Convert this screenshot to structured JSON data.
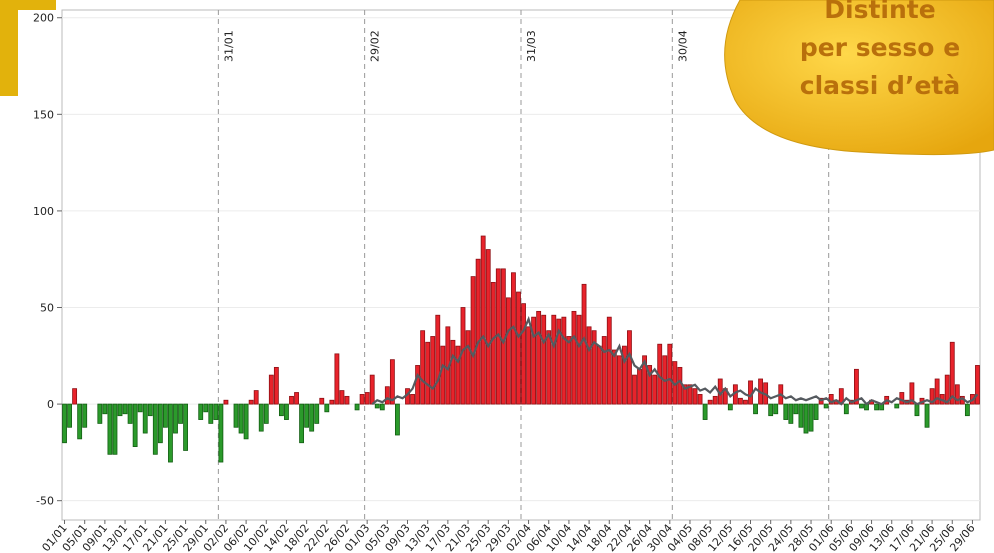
{
  "chart_data": {
    "type": "bar",
    "categories": [
      "01/01",
      null,
      null,
      null,
      "05/01",
      null,
      null,
      null,
      "09/01",
      null,
      null,
      null,
      "13/01",
      null,
      null,
      null,
      "17/01",
      null,
      null,
      null,
      "21/01",
      null,
      null,
      null,
      "25/01",
      null,
      null,
      null,
      "29/01",
      null,
      null,
      null,
      "02/02",
      null,
      null,
      null,
      "06/02",
      null,
      null,
      null,
      "10/02",
      null,
      null,
      null,
      "14/02",
      null,
      null,
      null,
      "18/02",
      null,
      null,
      null,
      "22/02",
      null,
      null,
      null,
      "26/02",
      null,
      null,
      null,
      "01/03",
      null,
      null,
      null,
      "05/03",
      null,
      null,
      null,
      "09/03",
      null,
      null,
      null,
      "13/03",
      null,
      null,
      null,
      "17/03",
      null,
      null,
      null,
      "21/03",
      null,
      null,
      null,
      "25/03",
      null,
      null,
      null,
      "29/03",
      null,
      null,
      null,
      "02/04",
      null,
      null,
      null,
      "06/04",
      null,
      null,
      null,
      "10/04",
      null,
      null,
      null,
      "14/04",
      null,
      null,
      null,
      "18/04",
      null,
      null,
      null,
      "22/04",
      null,
      null,
      null,
      "26/04",
      null,
      null,
      null,
      "30/04",
      null,
      null,
      null,
      "04/05",
      null,
      null,
      null,
      "08/05",
      null,
      null,
      null,
      "12/05",
      null,
      null,
      null,
      "16/05",
      null,
      null,
      null,
      "20/05",
      null,
      null,
      null,
      "24/05",
      null,
      null,
      null,
      "28/05",
      null,
      null,
      null,
      "01/06",
      null,
      null,
      null,
      "05/06",
      null,
      null,
      null,
      "09/06",
      null,
      null,
      null,
      "13/06",
      null,
      null,
      null,
      "17/06",
      null,
      null,
      null,
      "21/06",
      null,
      null,
      null,
      "25/06",
      null,
      null,
      null,
      "29/06",
      null
    ],
    "values": [
      -20,
      -12,
      8,
      -18,
      -12,
      0,
      0,
      -10,
      -5,
      -26,
      -26,
      -6,
      -5,
      -10,
      -22,
      -4,
      -15,
      -6,
      -26,
      -20,
      -12,
      -30,
      -15,
      -10,
      -24,
      0,
      0,
      -8,
      -4,
      -10,
      -8,
      -30,
      2,
      0,
      -12,
      -15,
      -18,
      2,
      7,
      -14,
      -10,
      15,
      19,
      -6,
      -8,
      4,
      6,
      -20,
      -12,
      -14,
      -10,
      3,
      -4,
      2,
      26,
      7,
      4,
      0,
      -3,
      5,
      6,
      15,
      -2,
      -3,
      9,
      23,
      -16,
      0,
      8,
      5,
      20,
      38,
      32,
      35,
      46,
      30,
      40,
      33,
      30,
      50,
      38,
      66,
      75,
      87,
      80,
      63,
      70,
      70,
      55,
      68,
      58,
      52,
      40,
      45,
      48,
      46,
      38,
      46,
      44,
      45,
      35,
      48,
      46,
      62,
      40,
      38,
      30,
      35,
      45,
      28,
      25,
      30,
      38,
      15,
      18,
      25,
      20,
      15,
      31,
      25,
      31,
      22,
      19,
      10,
      10,
      8,
      5,
      -8,
      2,
      4,
      13,
      8,
      -3,
      10,
      3,
      2,
      12,
      -5,
      13,
      11,
      -6,
      -5,
      10,
      -8,
      -10,
      -5,
      -12,
      -15,
      -14,
      -8,
      3,
      -2,
      5,
      2,
      8,
      -5,
      2,
      18,
      -2,
      -3,
      2,
      -3,
      -3,
      4,
      0,
      -2,
      6,
      2,
      11,
      -6,
      3,
      -12,
      8,
      13,
      5,
      15,
      32,
      10,
      4,
      -6,
      5,
      20
    ],
    "positive_color": "#e8232b",
    "negative_color": "#2b9a2b",
    "line": {
      "color": "#555a5f",
      "values": [
        null,
        null,
        null,
        null,
        null,
        null,
        null,
        null,
        null,
        null,
        null,
        null,
        null,
        null,
        null,
        null,
        null,
        null,
        null,
        null,
        null,
        null,
        null,
        null,
        null,
        null,
        null,
        null,
        null,
        null,
        null,
        null,
        null,
        null,
        null,
        null,
        null,
        null,
        null,
        null,
        null,
        null,
        null,
        null,
        null,
        null,
        null,
        null,
        null,
        null,
        null,
        null,
        null,
        null,
        null,
        null,
        null,
        null,
        null,
        null,
        null,
        0,
        2,
        1,
        3,
        2,
        4,
        3,
        5,
        8,
        15,
        12,
        10,
        8,
        12,
        20,
        18,
        25,
        22,
        28,
        30,
        25,
        32,
        35,
        30,
        34,
        36,
        32,
        38,
        40,
        35,
        38,
        44,
        35,
        37,
        32,
        36,
        30,
        38,
        34,
        32,
        35,
        30,
        34,
        28,
        32,
        30,
        27,
        28,
        25,
        30,
        22,
        26,
        20,
        18,
        22,
        15,
        18,
        14,
        12,
        13,
        10,
        12,
        8,
        9,
        10,
        7,
        8,
        6,
        9,
        5,
        8,
        4,
        6,
        7,
        5,
        4,
        8,
        6,
        5,
        3,
        4,
        5,
        3,
        4,
        2,
        3,
        2,
        3,
        4,
        2,
        3,
        1,
        2,
        0,
        3,
        1,
        2,
        3,
        0,
        2,
        1,
        0,
        2,
        1,
        3,
        2,
        1,
        2,
        0,
        1,
        2,
        1,
        3,
        2,
        1,
        4,
        2,
        3,
        1,
        2,
        5
      ]
    },
    "vlines": [
      {
        "label": "31/01",
        "index": 30
      },
      {
        "label": "29/02",
        "index": 59
      },
      {
        "label": "31/03",
        "index": 90
      },
      {
        "label": "30/04",
        "index": 120
      },
      {
        "index": 151
      }
    ],
    "ylim": [
      -60,
      204
    ],
    "yticks": [
      -50,
      0,
      50,
      100,
      150,
      200
    ],
    "grid": true
  },
  "badge": {
    "lines": [
      "Distinte",
      "per sesso e",
      "classi d’età"
    ]
  }
}
